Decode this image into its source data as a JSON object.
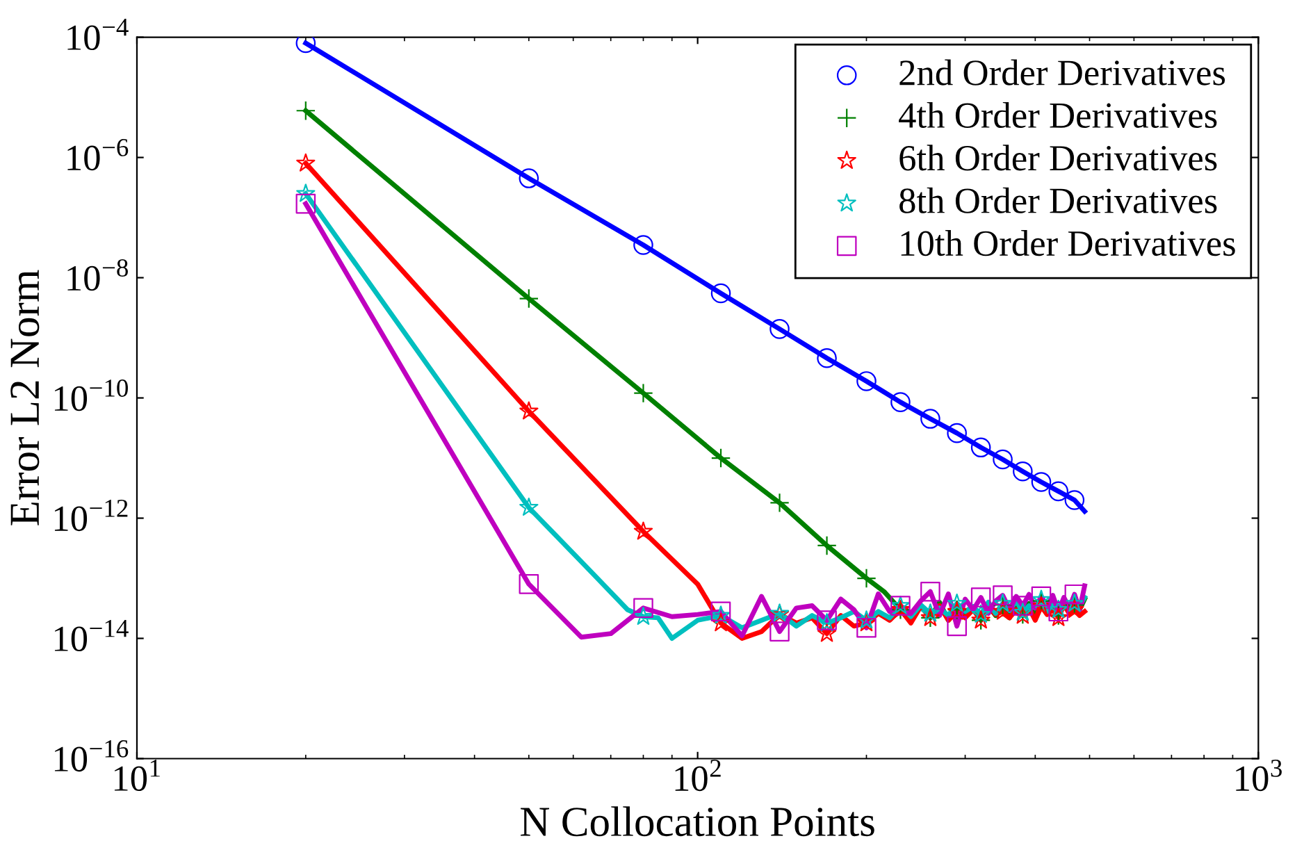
{
  "chart_data": {
    "type": "line",
    "xlabel": "N Collocation Points",
    "ylabel": "Error L2 Norm",
    "log": "xy",
    "grid": false,
    "legend": "top right",
    "xlim": [
      10,
      1000
    ],
    "xticks": [
      {
        "value": 10,
        "label": "10$^{1}$"
      },
      {
        "value": 100,
        "label": "10$^{2}$"
      },
      {
        "value": 1000,
        "label": "10$^{3}$"
      }
    ],
    "ylim": [
      1e-16,
      0.0001
    ],
    "yticks": [
      {
        "value": 1e-16,
        "label": "10$^{−16}$"
      },
      {
        "value": 1e-14,
        "label": "10$^{−14}$"
      },
      {
        "value": 1e-12,
        "label": "10$^{−12}$"
      },
      {
        "value": 1e-10,
        "label": "10$^{−10}$"
      },
      {
        "value": 1e-08,
        "label": "10$^{−8}$"
      },
      {
        "value": 1e-06,
        "label": "10$^{−6}$"
      },
      {
        "value": 0.0001,
        "label": "10$^{−4}$"
      }
    ],
    "series": [
      {
        "color": "#0000ff",
        "x": [
          20,
          50,
          80,
          110,
          140,
          170,
          200,
          230,
          260,
          290,
          320,
          350,
          380,
          410,
          440,
          470,
          490
        ],
        "values": [
          8e-05,
          4.5e-07,
          3.5e-08,
          5.5e-09,
          1.4e-09,
          4.6e-10,
          1.9e-10,
          8.5e-11,
          4.5e-11,
          2.6e-11,
          1.5e-11,
          9.5e-12,
          6e-12,
          4e-12,
          2.8e-12,
          2e-12,
          1.3e-12
        ]
      },
      {
        "color": "#008000",
        "x": [
          20,
          50,
          80,
          110,
          140,
          170,
          200,
          215,
          230,
          240,
          250,
          260,
          270,
          280,
          290,
          300,
          310,
          320,
          330,
          340,
          350,
          360,
          370,
          380,
          390,
          400,
          410,
          420,
          430,
          440,
          450,
          460,
          470,
          480,
          490
        ],
        "values": [
          6e-06,
          4.5e-09,
          1.2e-10,
          1e-11,
          1.8e-12,
          3.5e-13,
          1e-13,
          6e-14,
          3e-14,
          2.5e-14,
          3.5e-14,
          2.2e-14,
          4e-14,
          2e-14,
          3e-14,
          2.5e-14,
          3.2e-14,
          2e-14,
          3.5e-14,
          2.4e-14,
          3.6e-14,
          2.2e-14,
          4e-14,
          2.5e-14,
          3.8e-14,
          2.3e-14,
          4.2e-14,
          2.6e-14,
          3.5e-14,
          2.4e-14,
          4e-14,
          2.8e-14,
          3.6e-14,
          3e-14,
          4.5e-14
        ]
      },
      {
        "color": "#ff0000",
        "x": [
          20,
          50,
          80,
          100,
          110,
          120,
          130,
          140,
          150,
          160,
          170,
          180,
          190,
          200,
          210,
          220,
          230,
          240,
          250,
          260,
          270,
          280,
          290,
          300,
          310,
          320,
          330,
          340,
          350,
          360,
          370,
          380,
          390,
          400,
          410,
          420,
          430,
          440,
          450,
          460,
          470,
          480,
          490
        ],
        "values": [
          8e-07,
          6e-11,
          6e-13,
          8e-14,
          1.8e-14,
          1e-14,
          1.3e-14,
          2.5e-14,
          1.8e-14,
          2.2e-14,
          1.2e-14,
          2.4e-14,
          1.6e-14,
          1.8e-14,
          2.6e-14,
          2e-14,
          3e-14,
          1.8e-14,
          3.4e-14,
          2.2e-14,
          3.5e-14,
          2e-14,
          2.8e-14,
          2.2e-14,
          3e-14,
          2e-14,
          3.2e-14,
          2.5e-14,
          2.8e-14,
          2.2e-14,
          3e-14,
          2.4e-14,
          3.2e-14,
          2e-14,
          3.4e-14,
          2.5e-14,
          3e-14,
          2.2e-14,
          3.6e-14,
          2.6e-14,
          3e-14,
          2.4e-14,
          2.8e-14
        ]
      },
      {
        "color": "#00bfbf",
        "x": [
          20,
          50,
          65,
          75,
          80,
          85,
          90,
          100,
          110,
          120,
          130,
          140,
          150,
          160,
          170,
          180,
          190,
          200,
          210,
          220,
          230,
          240,
          250,
          260,
          270,
          280,
          290,
          300,
          310,
          320,
          330,
          340,
          350,
          360,
          370,
          380,
          390,
          400,
          410,
          420,
          430,
          440,
          450,
          460,
          470,
          480,
          490
        ],
        "values": [
          2.5e-07,
          1.5e-12,
          1.2e-13,
          3e-14,
          2.3e-14,
          2.2e-14,
          1e-14,
          2e-14,
          2.4e-14,
          1.5e-14,
          2e-14,
          2.6e-14,
          1.6e-14,
          2.4e-14,
          1.8e-14,
          2.2e-14,
          2.8e-14,
          2e-14,
          2.8e-14,
          2.2e-14,
          3.5e-14,
          2.3e-14,
          3.6e-14,
          2.6e-14,
          3.2e-14,
          2.4e-14,
          3.8e-14,
          2.8e-14,
          3.4e-14,
          2.5e-14,
          4e-14,
          2.6e-14,
          3.8e-14,
          2.9e-14,
          4.2e-14,
          2.7e-14,
          3.5e-14,
          3.2e-14,
          4.4e-14,
          2.8e-14,
          3.8e-14,
          3e-14,
          4.6e-14,
          3.2e-14,
          3.8e-14,
          3.4e-14,
          4.8e-14
        ]
      },
      {
        "color": "#bf00bf",
        "x": [
          20,
          50,
          62,
          70,
          80,
          90,
          100,
          110,
          120,
          130,
          140,
          150,
          160,
          170,
          180,
          190,
          200,
          210,
          220,
          230,
          240,
          250,
          260,
          270,
          280,
          290,
          300,
          310,
          320,
          330,
          340,
          350,
          360,
          370,
          380,
          390,
          400,
          410,
          420,
          430,
          440,
          450,
          460,
          470,
          480,
          490
        ],
        "values": [
          1.7e-07,
          8e-14,
          1.05e-14,
          1.2e-14,
          3.2e-14,
          2.3e-14,
          2.5e-14,
          2.8e-14,
          1.1e-14,
          5e-14,
          1.3e-14,
          3.2e-14,
          3.5e-14,
          2e-14,
          4.5e-14,
          3e-14,
          1.5e-14,
          5.5e-14,
          2.8e-14,
          3.5e-14,
          2.6e-14,
          4.2e-14,
          6e-14,
          2.4e-14,
          5.5e-14,
          1.6e-14,
          4.5e-14,
          3e-14,
          4.8e-14,
          2.6e-14,
          4.2e-14,
          5.2e-14,
          3e-14,
          5e-14,
          3.5e-14,
          5.4e-14,
          3.2e-14,
          5e-14,
          3.4e-14,
          5.2e-14,
          2.8e-14,
          4.8e-14,
          3.2e-14,
          5.4e-14,
          3e-14,
          7.5e-14
        ]
      },
      {
        "type": "scatter",
        "name": "2nd Order Derivatives",
        "color": "#0000ff",
        "marker": "circle",
        "x": [
          20,
          50,
          80,
          110,
          140,
          170,
          200,
          230,
          260,
          290,
          320,
          350,
          380,
          410,
          440,
          470
        ],
        "values": [
          8e-05,
          4.5e-07,
          3.5e-08,
          5.5e-09,
          1.4e-09,
          4.6e-10,
          1.9e-10,
          8.5e-11,
          4.5e-11,
          2.6e-11,
          1.5e-11,
          9.5e-12,
          6e-12,
          4e-12,
          2.8e-12,
          2e-12
        ]
      },
      {
        "type": "scatter",
        "name": "4th Order Derivatives",
        "color": "#008000",
        "marker": "cross",
        "x": [
          20,
          50,
          80,
          110,
          140,
          170,
          200,
          230,
          260,
          290,
          320,
          350,
          380,
          410,
          440,
          470
        ],
        "values": [
          6e-06,
          4.5e-09,
          1.2e-10,
          1e-11,
          1.8e-12,
          3.5e-13,
          1e-13,
          3e-14,
          2.2e-14,
          3e-14,
          2e-14,
          3.6e-14,
          2.5e-14,
          4.2e-14,
          2.4e-14,
          3.6e-14
        ]
      },
      {
        "type": "scatter",
        "name": "6th Order Derivatives",
        "color": "#ff0000",
        "marker": "star",
        "x": [
          20,
          50,
          80,
          110,
          140,
          170,
          200,
          230,
          260,
          290,
          320,
          350,
          380,
          410,
          440,
          470
        ],
        "values": [
          8e-07,
          6e-11,
          6e-13,
          1.8e-14,
          2.5e-14,
          1.2e-14,
          1.8e-14,
          3e-14,
          2.2e-14,
          2.8e-14,
          2e-14,
          2.8e-14,
          2.4e-14,
          3.4e-14,
          2.2e-14,
          3e-14
        ]
      },
      {
        "type": "scatter",
        "name": "8th Order Derivatives",
        "color": "#00bfbf",
        "marker": "star",
        "x": [
          20,
          50,
          80,
          110,
          140,
          170,
          200,
          230,
          260,
          290,
          320,
          350,
          380,
          410,
          440,
          470
        ],
        "values": [
          2.5e-07,
          1.5e-12,
          2.3e-14,
          2.4e-14,
          2.6e-14,
          1.8e-14,
          2e-14,
          3.5e-14,
          2.6e-14,
          3.8e-14,
          2.5e-14,
          3.8e-14,
          2.7e-14,
          4.4e-14,
          3e-14,
          3.8e-14
        ]
      },
      {
        "type": "scatter",
        "name": "10th Order Derivatives",
        "color": "#bf00bf",
        "marker": "square",
        "x": [
          20,
          50,
          80,
          110,
          140,
          170,
          200,
          230,
          260,
          290,
          320,
          350,
          380,
          410,
          440,
          470
        ],
        "values": [
          1.7e-07,
          8e-14,
          3.2e-14,
          2.8e-14,
          1.3e-14,
          2e-14,
          1.5e-14,
          3.5e-14,
          6e-14,
          1.6e-14,
          4.8e-14,
          5.2e-14,
          3.5e-14,
          5e-14,
          2.8e-14,
          5.4e-14
        ]
      }
    ]
  }
}
